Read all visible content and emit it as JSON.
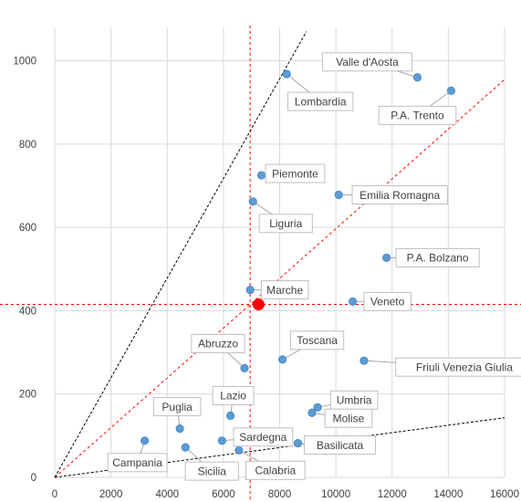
{
  "chart_data": {
    "type": "scatter",
    "xlim": [
      0,
      16000
    ],
    "ylim": [
      0,
      1080
    ],
    "x_ticks": [
      0,
      2000,
      4000,
      6000,
      8000,
      10000,
      12000,
      14000,
      16000
    ],
    "y_ticks": [
      0,
      200,
      400,
      600,
      800,
      1000
    ],
    "grid": true,
    "point_color": "#5b9bd5",
    "highlight": {
      "x": 7250,
      "y": 415,
      "color": "#ff0000"
    },
    "reference_lines": {
      "vertical_x": 6950,
      "horizontal_y": 415,
      "diagonal_through_highlight": [
        [
          0,
          0
        ],
        [
          16000,
          955
        ]
      ],
      "steep_line": [
        [
          0,
          0
        ],
        [
          8950,
          1070
        ]
      ],
      "shallow_line": [
        [
          0,
          0
        ],
        [
          16000,
          143
        ]
      ],
      "red_color": "#ff0000",
      "black_color": "#000000"
    },
    "points": [
      {
        "label": "Valle d'Aosta",
        "x": 12900,
        "y": 960
      },
      {
        "label": "Lombardia",
        "x": 8250,
        "y": 968
      },
      {
        "label": "P.A. Trento",
        "x": 14100,
        "y": 928
      },
      {
        "label": "Piemonte",
        "x": 7350,
        "y": 725
      },
      {
        "label": "Emilia Romagna",
        "x": 10100,
        "y": 678
      },
      {
        "label": "Liguria",
        "x": 7050,
        "y": 662
      },
      {
        "label": "P.A. Bolzano",
        "x": 11800,
        "y": 527
      },
      {
        "label": "Marche",
        "x": 6950,
        "y": 450
      },
      {
        "label": "Veneto",
        "x": 10600,
        "y": 422
      },
      {
        "label": "Abruzzo",
        "x": 6750,
        "y": 262
      },
      {
        "label": "Toscana",
        "x": 8100,
        "y": 283
      },
      {
        "label": "Friuli Venezia Giulia",
        "x": 11000,
        "y": 280
      },
      {
        "label": "Lazio",
        "x": 6250,
        "y": 148
      },
      {
        "label": "Puglia",
        "x": 4450,
        "y": 117
      },
      {
        "label": "Umbria",
        "x": 9350,
        "y": 168
      },
      {
        "label": "Molise",
        "x": 9150,
        "y": 155
      },
      {
        "label": "Sardegna",
        "x": 5950,
        "y": 88
      },
      {
        "label": "Basilicata",
        "x": 8650,
        "y": 82
      },
      {
        "label": "Campania",
        "x": 3200,
        "y": 88
      },
      {
        "label": "Sicilia",
        "x": 4650,
        "y": 72
      },
      {
        "label": "Calabria",
        "x": 6550,
        "y": 65
      }
    ]
  }
}
